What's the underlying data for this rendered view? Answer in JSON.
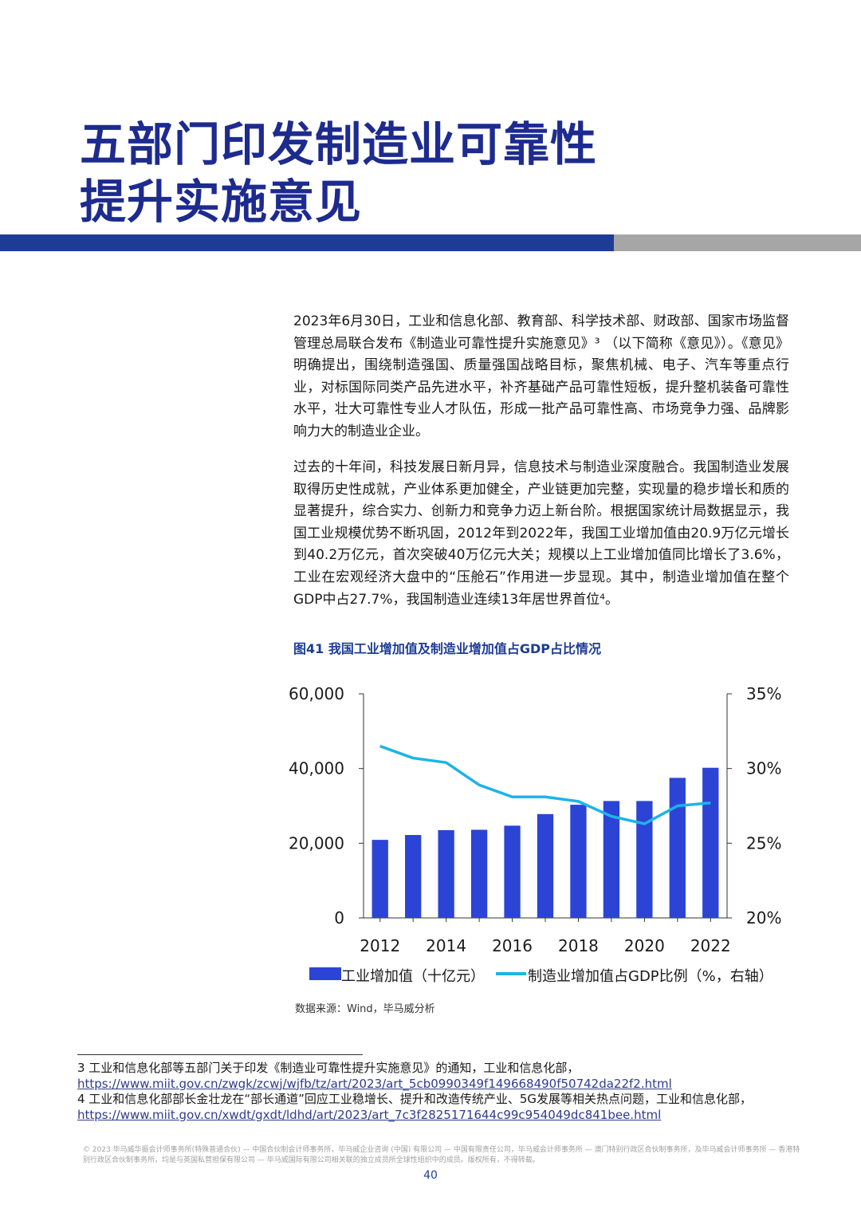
{
  "header": {
    "title_line1": "五部门印发制造业可靠性",
    "title_line2": "提升实施意见"
  },
  "body": {
    "paragraph1": "2023年6月30日，工业和信息化部、教育部、科学技术部、财政部、国家市场监督管理总局联合发布《制造业可靠性提升实施意见》³ （以下简称《意见》）。《意见》明确提出，围绕制造强国、质量强国战略目标，聚焦机械、电子、汽车等重点行业，对标国际同类产品先进水平，补齐基础产品可靠性短板，提升整机装备可靠性水平，壮大可靠性专业人才队伍，形成一批产品可靠性高、市场竞争力强、品牌影响力大的制造业企业。",
    "paragraph2": "过去的十年间，科技发展日新月异，信息技术与制造业深度融合。我国制造业发展取得历史性成就，产业体系更加健全，产业链更加完整，实现量的稳步增长和质的显著提升，综合实力、创新力和竞争力迈上新台阶。根据国家统计局数据显示，我国工业规模优势不断巩固，2012年到2022年，我国工业增加值由20.9万亿元增长到40.2万亿元，首次突破40万亿元大关；规模以上工业增加值同比增长了3.6%，工业在宏观经济大盘中的“压舱石”作用进一步显现。其中，制造业增加值在整个GDP中占27.7%，我国制造业连续13年居世界首位⁴。"
  },
  "figure": {
    "caption": "图41 我国工业增加值及制造业增加值占GDP占比情况",
    "source": "数据来源：Wind，毕马威分析"
  },
  "chart_data": {
    "type": "bar",
    "title": "",
    "categories": [
      "2012",
      "2013",
      "2014",
      "2015",
      "2016",
      "2017",
      "2018",
      "2019",
      "2020",
      "2021",
      "2022"
    ],
    "x_tick_labels": [
      "2012",
      "2014",
      "2016",
      "2018",
      "2020",
      "2022"
    ],
    "series": [
      {
        "name": "工业增加值（十亿元）",
        "type": "bar",
        "axis": "left",
        "color": "#2b44d6",
        "values": [
          20900,
          22200,
          23500,
          23600,
          24700,
          27800,
          30300,
          31300,
          31300,
          37500,
          40200
        ]
      },
      {
        "name": "制造业增加值占GDP比例（%，右轴）",
        "type": "line",
        "axis": "right",
        "color": "#1eb4e6",
        "values": [
          31.5,
          30.7,
          30.4,
          28.9,
          28.1,
          28.1,
          27.8,
          26.8,
          26.3,
          27.5,
          27.7
        ]
      }
    ],
    "y_left": {
      "min": 0,
      "max": 60000,
      "ticks": [
        "0",
        "20,000",
        "40,000",
        "60,000"
      ]
    },
    "y_right": {
      "min": 20,
      "max": 35,
      "ticks": [
        "20%",
        "25%",
        "30%",
        "35%"
      ]
    },
    "grid": false,
    "legend_position": "bottom"
  },
  "footnotes": [
    {
      "text": "3 工业和信息化部等五部门关于印发《制造业可靠性提升实施意见》的通知，工业和信息化部，",
      "url": "https://www.miit.gov.cn/zwgk/zcwj/wjfb/tz/art/2023/art_5cb0990349f149668490f50742da22f2.html"
    },
    {
      "text": "4 工业和信息化部部长金壮龙在“部长通道”回应工业稳增长、提升和改造传统产业、5G发展等相关热点问题，工业和信息化部，",
      "url": "https://www.miit.gov.cn/xwdt/gxdt/ldhd/art/2023/art_7c3f2825171644c99c954049dc841bee.html"
    }
  ],
  "footer": {
    "copyright": "© 2023 毕马威华振会计师事务所(特殊普通合伙) — 中国合伙制会计师事务所，毕马威企业咨询 (中国) 有限公司 — 中国有限责任公司，毕马威会计师事务所 — 澳门特别行政区合伙制事务所，及毕马威会计师事务所 — 香港特别行政区合伙制事务所，均是与英国私营担保有限公司 — 毕马威国际有限公司相关联的独立成员所全球性组织中的成员。版权所有，不得转载。",
    "page_number": "40"
  }
}
